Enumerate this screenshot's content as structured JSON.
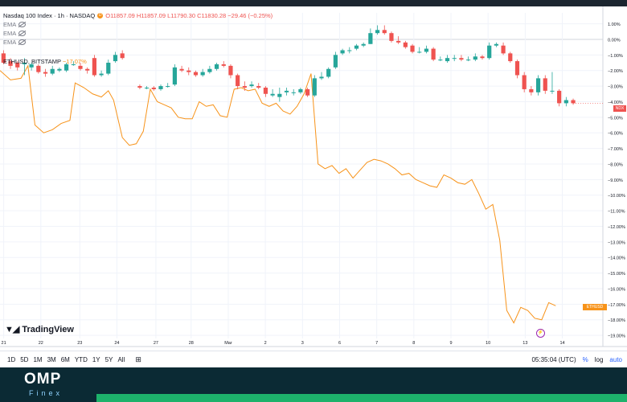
{
  "legend": {
    "symbol": "Nasdaq 100 Index · 1h · NASDAQ",
    "badge": "D",
    "ohlc": "O11857.09  H11857.09  L11790.30  C11830.28  −29.46 (−0.25%)",
    "indicators": [
      "EMA",
      "EMA",
      "EMA"
    ],
    "compare": "ETHUSD, BITSTAMP",
    "compare_change": "−17.07%"
  },
  "colors": {
    "up": "#26a69a",
    "down": "#ef5350",
    "eth": "#f7931a",
    "grid": "#f0f3fa",
    "axis": "#787b86"
  },
  "chart_data": {
    "type": "line",
    "x_labels": [
      "21",
      "22",
      "23",
      "24",
      "27",
      "28",
      "Mar",
      "2",
      "3",
      "6",
      "7",
      "8",
      "9",
      "10",
      "13",
      "14"
    ],
    "y_ticks": [
      "1.00%",
      "0.00%",
      "−1.00%",
      "−2.00%",
      "−3.00%",
      "−4.00%",
      "−5.00%",
      "−6.00%",
      "−7.00%",
      "−8.00%",
      "−9.00%",
      "−10.00%",
      "−11.00%",
      "−12.00%",
      "−13.00%",
      "−14.00%",
      "−15.00%",
      "−16.00%",
      "−17.00%",
      "−18.00%",
      "−19.00%"
    ],
    "ylim": [
      1.7,
      -19.2
    ],
    "ndx_label": "NDX",
    "eth_label": "ETHUSD",
    "ndx_candles": [
      {
        "x": 0.2,
        "o": -0.9,
        "c": -1.5,
        "h": -0.7,
        "l": -1.6
      },
      {
        "x": 0.6,
        "o": -1.4,
        "c": -1.7,
        "h": -1.2,
        "l": -1.9
      },
      {
        "x": 1.0,
        "o": -1.5,
        "c": -1.8,
        "h": -1.4,
        "l": -2.0
      },
      {
        "x": 1.4,
        "o": -1.6,
        "c": -1.5,
        "h": -1.2,
        "l": -2.3
      },
      {
        "x": 1.8,
        "o": -1.8,
        "c": -1.6,
        "h": -1.5,
        "l": -2.0
      },
      {
        "x": 2.2,
        "o": -1.7,
        "c": -2.1,
        "h": -1.6,
        "l": -2.2
      },
      {
        "x": 2.6,
        "o": -2.1,
        "c": -2.2,
        "h": -1.9,
        "l": -2.4
      },
      {
        "x": 3.0,
        "o": -2.2,
        "c": -1.9,
        "h": -1.7,
        "l": -2.3
      },
      {
        "x": 3.4,
        "o": -2.0,
        "c": -1.9,
        "h": -1.8,
        "l": -2.1
      },
      {
        "x": 3.8,
        "o": -2.0,
        "c": -1.6,
        "h": -1.5,
        "l": -2.1
      },
      {
        "x": 4.2,
        "o": -1.6,
        "c": -1.6,
        "h": -1.4,
        "l": -1.7
      },
      {
        "x": 4.6,
        "o": -1.7,
        "c": -1.9,
        "h": -1.5,
        "l": -2.0
      },
      {
        "x": 5.0,
        "o": -1.9,
        "c": -2.0,
        "h": -1.8,
        "l": -2.2
      },
      {
        "x": 5.4,
        "o": -1.2,
        "c": -2.3,
        "h": -1.0,
        "l": -2.4
      },
      {
        "x": 5.8,
        "o": -2.3,
        "c": -2.2,
        "h": -2.0,
        "l": -2.4
      },
      {
        "x": 6.2,
        "o": -2.2,
        "c": -1.5,
        "h": -1.3,
        "l": -2.3
      },
      {
        "x": 6.6,
        "o": -1.4,
        "c": -1.0,
        "h": -0.8,
        "l": -1.5
      },
      {
        "x": 7.0,
        "o": -0.9,
        "c": -1.2,
        "h": -0.7,
        "l": -1.3
      },
      {
        "x": 8.0,
        "o": -3.0,
        "c": -3.1,
        "h": -2.9,
        "l": -3.2
      },
      {
        "x": 8.4,
        "o": -3.1,
        "c": -3.1,
        "h": -3.0,
        "l": -3.2
      },
      {
        "x": 8.8,
        "o": -3.1,
        "c": -3.2,
        "h": -3.0,
        "l": -3.3
      },
      {
        "x": 9.2,
        "o": -3.2,
        "c": -3.0,
        "h": -2.9,
        "l": -3.3
      },
      {
        "x": 9.6,
        "o": -3.0,
        "c": -3.0,
        "h": -2.8,
        "l": -3.1
      },
      {
        "x": 10.0,
        "o": -2.9,
        "c": -1.8,
        "h": -1.6,
        "l": -3.0
      },
      {
        "x": 10.4,
        "o": -1.9,
        "c": -2.0,
        "h": -1.7,
        "l": -2.1
      },
      {
        "x": 10.8,
        "o": -2.0,
        "c": -2.1,
        "h": -1.8,
        "l": -2.3
      },
      {
        "x": 11.2,
        "o": -2.1,
        "c": -2.3,
        "h": -2.0,
        "l": -2.4
      },
      {
        "x": 11.6,
        "o": -2.3,
        "c": -2.1,
        "h": -1.9,
        "l": -2.4
      },
      {
        "x": 12.0,
        "o": -2.1,
        "c": -1.9,
        "h": -1.7,
        "l": -2.2
      },
      {
        "x": 12.4,
        "o": -1.9,
        "c": -1.6,
        "h": -1.5,
        "l": -2.0
      },
      {
        "x": 12.8,
        "o": -1.6,
        "c": -1.7,
        "h": -1.4,
        "l": -1.8
      },
      {
        "x": 13.2,
        "o": -1.7,
        "c": -2.3,
        "h": -1.6,
        "l": -2.5
      },
      {
        "x": 13.6,
        "o": -2.3,
        "c": -3.0,
        "h": -2.2,
        "l": -3.2
      },
      {
        "x": 14.0,
        "o": -3.0,
        "c": -3.1,
        "h": -2.7,
        "l": -3.3
      },
      {
        "x": 14.4,
        "o": -3.0,
        "c": -2.9,
        "h": -2.7,
        "l": -3.1
      },
      {
        "x": 14.8,
        "o": -3.0,
        "c": -3.1,
        "h": -2.8,
        "l": -3.2
      },
      {
        "x": 15.2,
        "o": -3.1,
        "c": -3.5,
        "h": -3.0,
        "l": -3.7
      },
      {
        "x": 15.6,
        "o": -3.6,
        "c": -3.5,
        "h": -3.2,
        "l": -3.7
      },
      {
        "x": 16.0,
        "o": -3.7,
        "c": -3.5,
        "h": -3.1,
        "l": -4.0
      },
      {
        "x": 16.4,
        "o": -3.4,
        "c": -3.3,
        "h": -3.1,
        "l": -3.6
      },
      {
        "x": 16.8,
        "o": -3.4,
        "c": -3.4,
        "h": -3.2,
        "l": -3.6
      },
      {
        "x": 17.2,
        "o": -3.4,
        "c": -3.2,
        "h": -3.1,
        "l": -3.5
      },
      {
        "x": 17.6,
        "o": -3.2,
        "c": -3.6,
        "h": -3.1,
        "l": -3.7
      },
      {
        "x": 18.0,
        "o": -3.6,
        "c": -2.5,
        "h": -2.3,
        "l": -3.7
      },
      {
        "x": 18.4,
        "o": -2.5,
        "c": -2.4,
        "h": -2.1,
        "l": -2.6
      },
      {
        "x": 18.8,
        "o": -2.4,
        "c": -1.9,
        "h": -1.8,
        "l": -2.5
      },
      {
        "x": 19.2,
        "o": -1.8,
        "c": -1.0,
        "h": -0.8,
        "l": -1.9
      },
      {
        "x": 19.6,
        "o": -0.9,
        "c": -0.7,
        "h": -0.6,
        "l": -1.0
      },
      {
        "x": 20.0,
        "o": -0.7,
        "c": -0.7,
        "h": -0.5,
        "l": -0.9
      },
      {
        "x": 20.4,
        "o": -0.6,
        "c": -0.4,
        "h": -0.3,
        "l": -0.7
      },
      {
        "x": 20.8,
        "o": -0.4,
        "c": -0.3,
        "h": -0.2,
        "l": -0.5
      },
      {
        "x": 21.2,
        "o": -0.3,
        "c": 0.4,
        "h": 0.7,
        "l": -0.3
      },
      {
        "x": 21.6,
        "o": 0.4,
        "c": 0.6,
        "h": 0.9,
        "l": 0.3
      },
      {
        "x": 22.0,
        "o": 0.6,
        "c": 0.4,
        "h": 0.9,
        "l": 0.3
      },
      {
        "x": 22.4,
        "o": 0.4,
        "c": -0.1,
        "h": 0.5,
        "l": -0.2
      },
      {
        "x": 22.8,
        "o": -0.1,
        "c": -0.2,
        "h": 0.2,
        "l": -0.3
      },
      {
        "x": 23.2,
        "o": -0.2,
        "c": -0.5,
        "h": -0.1,
        "l": -0.6
      },
      {
        "x": 23.6,
        "o": -0.4,
        "c": -0.8,
        "h": -0.3,
        "l": -0.9
      },
      {
        "x": 24.0,
        "o": -0.8,
        "c": -0.8,
        "h": -0.5,
        "l": -0.9
      },
      {
        "x": 24.4,
        "o": -0.8,
        "c": -0.6,
        "h": -0.4,
        "l": -0.9
      },
      {
        "x": 24.8,
        "o": -0.6,
        "c": -1.3,
        "h": -0.5,
        "l": -1.4
      },
      {
        "x": 25.2,
        "o": -1.3,
        "c": -1.3,
        "h": -1.1,
        "l": -1.4
      },
      {
        "x": 25.6,
        "o": -1.4,
        "c": -1.2,
        "h": -1.0,
        "l": -1.5
      },
      {
        "x": 26.0,
        "o": -1.2,
        "c": -1.2,
        "h": -1.0,
        "l": -1.4
      },
      {
        "x": 26.4,
        "o": -1.2,
        "c": -1.3,
        "h": -1.0,
        "l": -1.4
      },
      {
        "x": 26.8,
        "o": -1.3,
        "c": -1.3,
        "h": -1.1,
        "l": -1.4
      },
      {
        "x": 27.2,
        "o": -1.3,
        "c": -1.1,
        "h": -0.9,
        "l": -1.4
      },
      {
        "x": 27.6,
        "o": -1.1,
        "c": -1.2,
        "h": -1.0,
        "l": -1.3
      },
      {
        "x": 28.0,
        "o": -1.2,
        "c": -0.4,
        "h": -0.2,
        "l": -1.3
      },
      {
        "x": 28.4,
        "o": -0.4,
        "c": -0.3,
        "h": -0.2,
        "l": -0.5
      },
      {
        "x": 28.8,
        "o": -0.4,
        "c": -0.9,
        "h": -0.2,
        "l": -1.0
      },
      {
        "x": 29.2,
        "o": -0.9,
        "c": -1.4,
        "h": -0.8,
        "l": -1.5
      },
      {
        "x": 29.6,
        "o": -1.4,
        "c": -2.3,
        "h": -1.3,
        "l": -2.5
      },
      {
        "x": 30.0,
        "o": -2.3,
        "c": -3.2,
        "h": -2.1,
        "l": -3.4
      },
      {
        "x": 30.4,
        "o": -3.2,
        "c": -3.4,
        "h": -3.0,
        "l": -3.6
      },
      {
        "x": 30.8,
        "o": -3.4,
        "c": -2.5,
        "h": -2.3,
        "l": -3.6
      },
      {
        "x": 31.2,
        "o": -2.5,
        "c": -3.3,
        "h": -2.3,
        "l": -3.5
      },
      {
        "x": 31.6,
        "o": -3.3,
        "c": -3.3,
        "h": -2.1,
        "l": -3.5
      },
      {
        "x": 32.0,
        "o": -3.3,
        "c": -4.1,
        "h": -3.2,
        "l": -4.3
      },
      {
        "x": 32.4,
        "o": -4.1,
        "c": -3.9,
        "h": -3.7,
        "l": -4.3
      },
      {
        "x": 32.8,
        "o": -3.9,
        "c": -4.1,
        "h": -3.8,
        "l": -4.2
      }
    ],
    "eth_line": [
      [
        0.0,
        -2.0
      ],
      [
        0.6,
        -2.6
      ],
      [
        1.2,
        -2.5
      ],
      [
        1.6,
        -1.7
      ],
      [
        2.0,
        -5.5
      ],
      [
        2.5,
        -6.0
      ],
      [
        3.0,
        -5.8
      ],
      [
        3.5,
        -5.4
      ],
      [
        4.0,
        -5.2
      ],
      [
        4.3,
        -2.8
      ],
      [
        4.8,
        -3.1
      ],
      [
        5.3,
        -3.5
      ],
      [
        5.8,
        -3.7
      ],
      [
        6.2,
        -3.3
      ],
      [
        6.5,
        -3.9
      ],
      [
        7.0,
        -6.3
      ],
      [
        7.4,
        -6.8
      ],
      [
        7.8,
        -6.7
      ],
      [
        8.2,
        -5.9
      ],
      [
        8.6,
        -3.2
      ],
      [
        9.0,
        -4.0
      ],
      [
        9.4,
        -4.2
      ],
      [
        9.8,
        -4.4
      ],
      [
        10.2,
        -5.0
      ],
      [
        10.6,
        -5.1
      ],
      [
        11.0,
        -5.1
      ],
      [
        11.4,
        -4.0
      ],
      [
        11.8,
        -4.3
      ],
      [
        12.2,
        -4.2
      ],
      [
        12.6,
        -4.9
      ],
      [
        13.0,
        -5.0
      ],
      [
        13.4,
        -3.2
      ],
      [
        13.8,
        -3.1
      ],
      [
        14.2,
        -3.3
      ],
      [
        14.6,
        -3.2
      ],
      [
        15.0,
        -4.1
      ],
      [
        15.4,
        -4.3
      ],
      [
        15.8,
        -4.1
      ],
      [
        16.2,
        -4.6
      ],
      [
        16.6,
        -4.8
      ],
      [
        17.0,
        -4.3
      ],
      [
        17.4,
        -3.5
      ],
      [
        17.8,
        -2.2
      ],
      [
        18.2,
        -8.0
      ],
      [
        18.6,
        -8.3
      ],
      [
        19.0,
        -8.1
      ],
      [
        19.4,
        -8.6
      ],
      [
        19.8,
        -8.3
      ],
      [
        20.2,
        -8.9
      ],
      [
        20.6,
        -8.4
      ],
      [
        21.0,
        -7.9
      ],
      [
        21.4,
        -7.7
      ],
      [
        21.8,
        -7.8
      ],
      [
        22.2,
        -8.0
      ],
      [
        22.6,
        -8.3
      ],
      [
        23.0,
        -8.7
      ],
      [
        23.4,
        -8.6
      ],
      [
        23.8,
        -9.0
      ],
      [
        24.2,
        -9.2
      ],
      [
        24.6,
        -9.4
      ],
      [
        25.0,
        -9.5
      ],
      [
        25.4,
        -8.7
      ],
      [
        25.8,
        -8.9
      ],
      [
        26.2,
        -9.2
      ],
      [
        26.6,
        -9.3
      ],
      [
        27.0,
        -9.0
      ],
      [
        27.4,
        -9.9
      ],
      [
        27.8,
        -10.9
      ],
      [
        28.2,
        -10.6
      ],
      [
        28.6,
        -12.9
      ],
      [
        29.0,
        -17.4
      ],
      [
        29.4,
        -18.2
      ],
      [
        29.8,
        -17.2
      ],
      [
        30.2,
        -17.4
      ],
      [
        30.6,
        -17.9
      ],
      [
        31.0,
        -18.0
      ],
      [
        31.4,
        -16.9
      ],
      [
        31.8,
        -17.1
      ]
    ]
  },
  "bottom": {
    "timeframes": [
      "1D",
      "5D",
      "1M",
      "3M",
      "6M",
      "YTD",
      "1Y",
      "5Y",
      "All"
    ],
    "clock": "05:35:04 (UTC)",
    "pct": "%",
    "log": "log",
    "auto": "auto"
  },
  "branding": {
    "tv": "TradingView",
    "omp": "OMP",
    "finex": "Finex"
  }
}
